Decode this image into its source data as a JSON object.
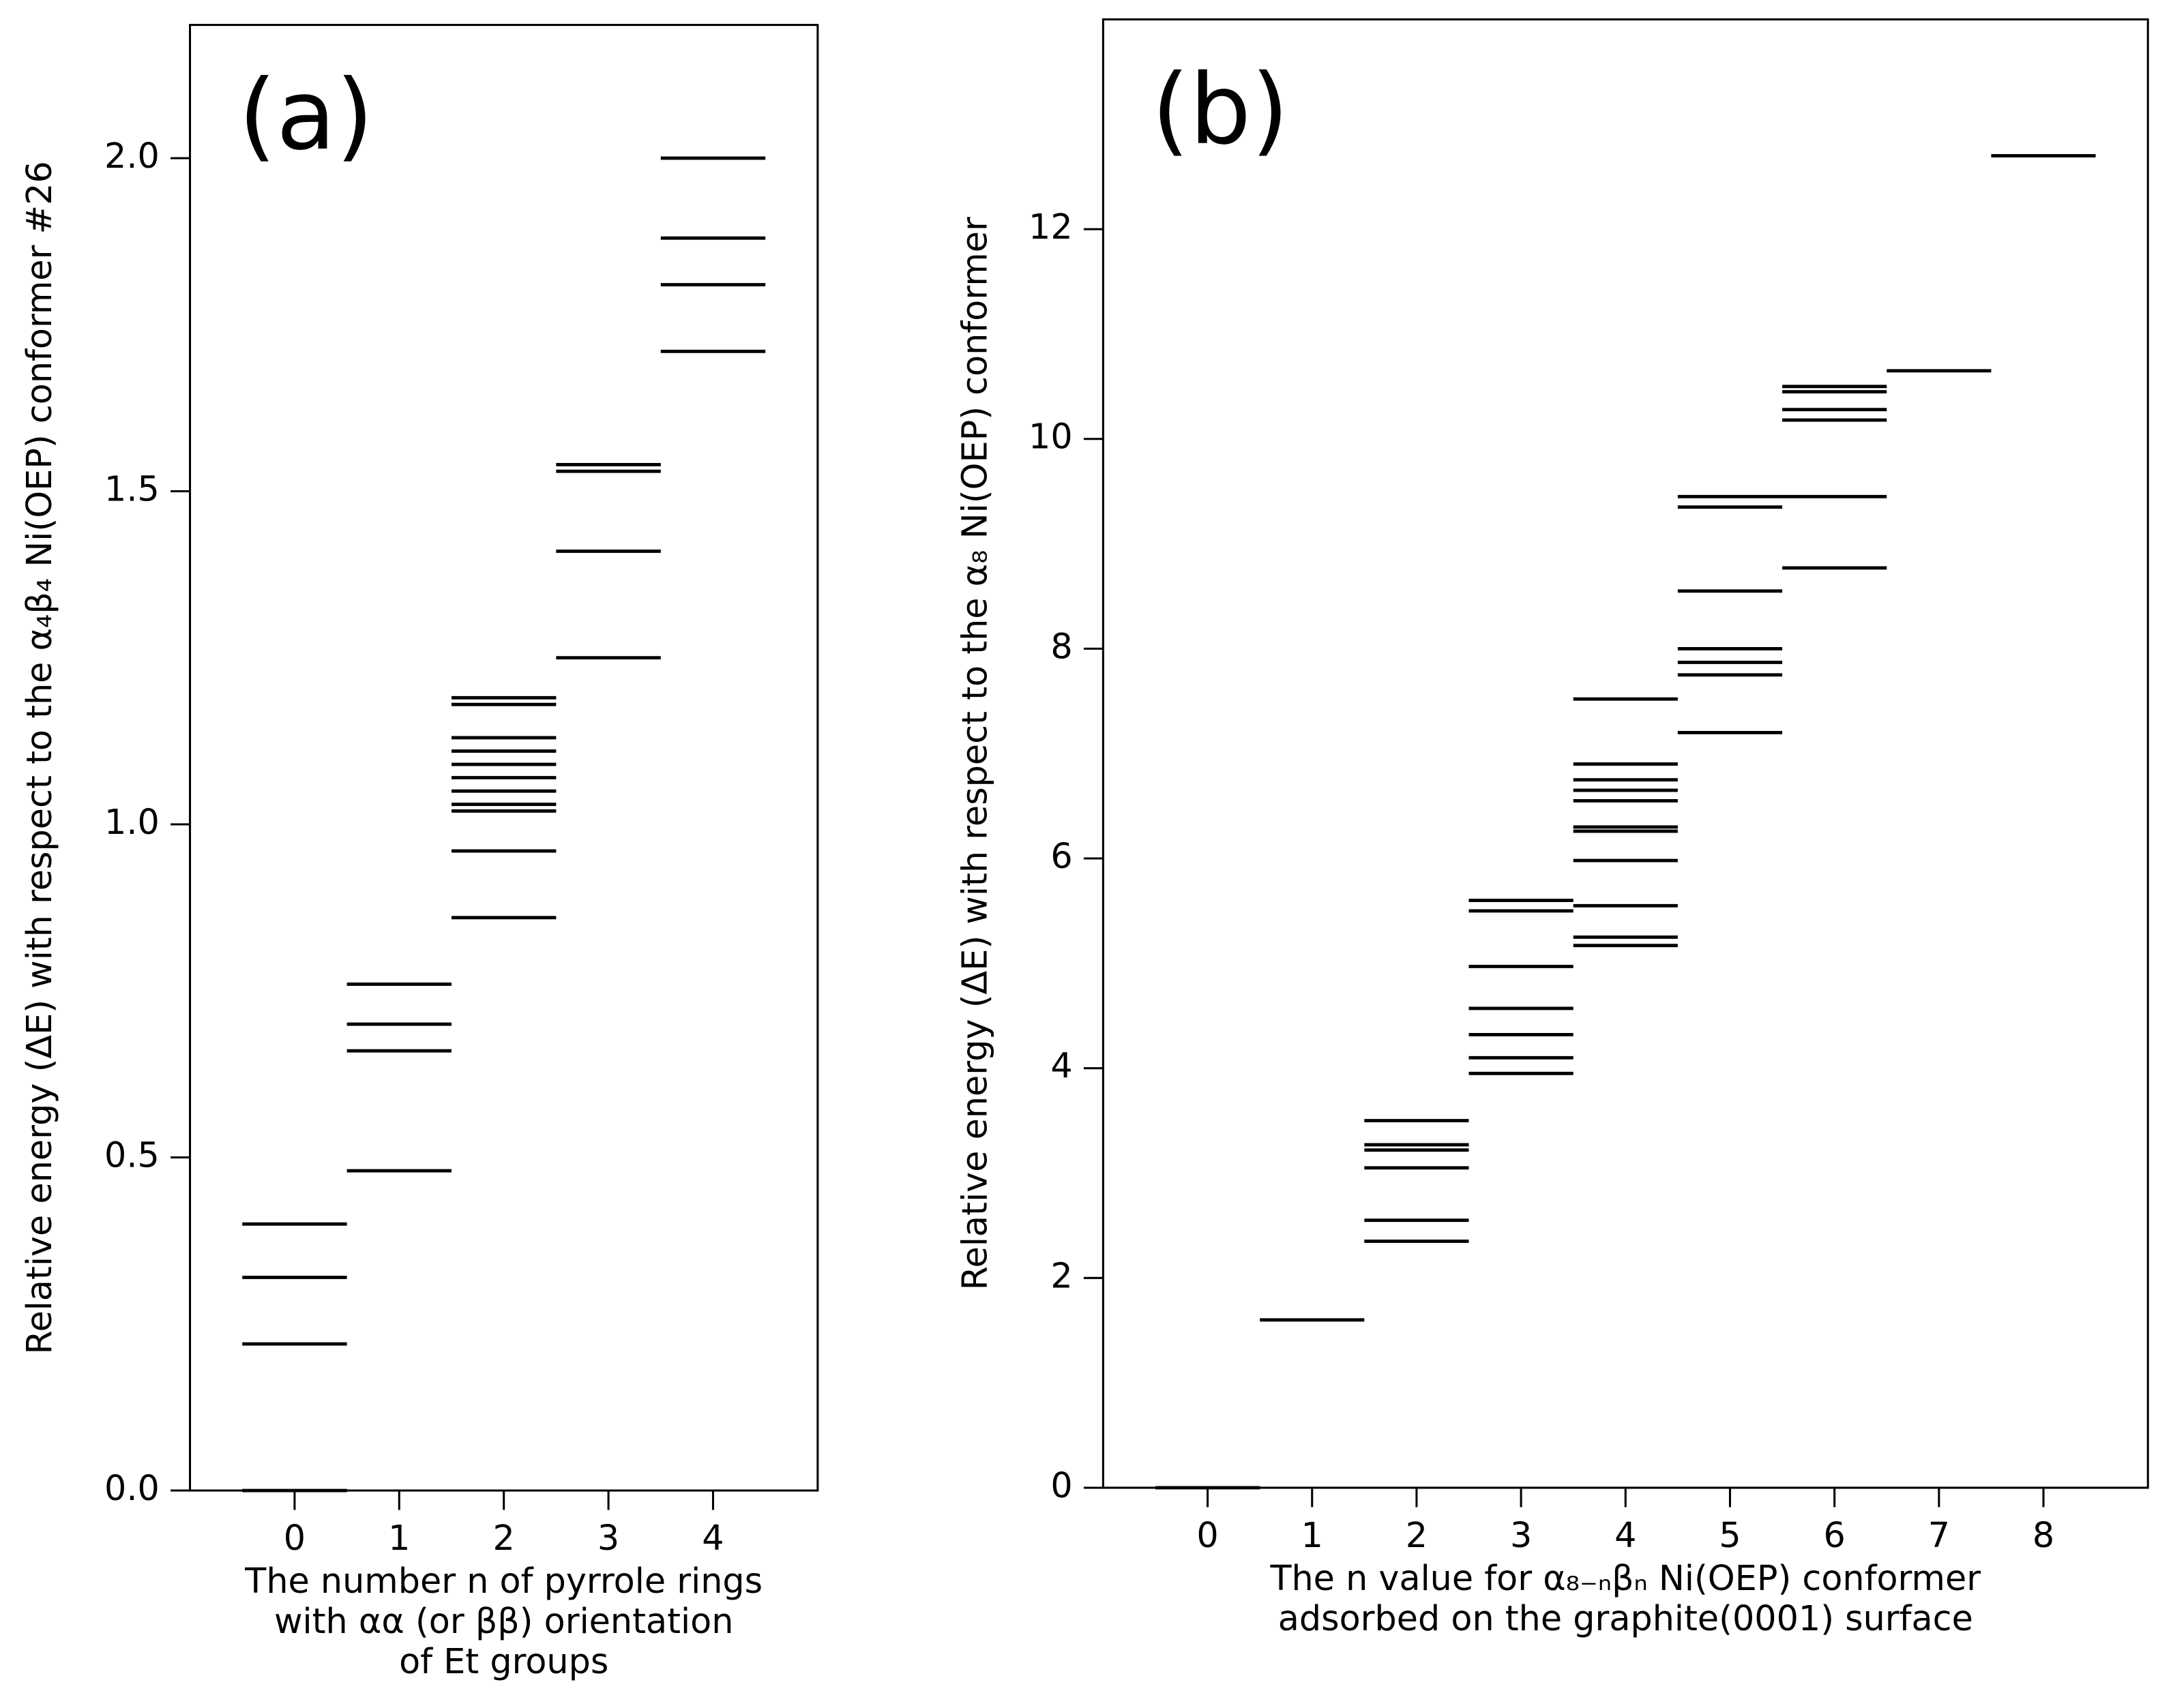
{
  "chart_data": [
    {
      "type": "levels",
      "panel_label": "(a)",
      "ylabel": "Relative energy (ΔE) with respect to the α₄β₄ Ni(OEP) conformer #26",
      "xlabel": [
        "The number n of pyrrole rings",
        "with αα (or ββ) orientation",
        "of Et groups"
      ],
      "x": [
        0,
        1,
        2,
        3,
        4
      ],
      "xlim": [
        -1,
        5
      ],
      "xticks": [
        0,
        1,
        2,
        3,
        4
      ],
      "ylim": [
        0,
        2.2
      ],
      "yticks": [
        {
          "value": 0,
          "label": "0.0"
        },
        0.5,
        {
          "value": 1,
          "label": "1.0"
        },
        1.5,
        {
          "value": 2,
          "label": "2.0"
        }
      ],
      "levels": [
        [
          0.0,
          0.22,
          0.32,
          0.4
        ],
        [
          0.48,
          0.66,
          0.7,
          0.76
        ],
        [
          0.86,
          0.96,
          1.02,
          1.03,
          1.05,
          1.07,
          1.09,
          1.11,
          1.13,
          1.18,
          1.19
        ],
        [
          1.25,
          1.41,
          1.53,
          1.54
        ],
        [
          1.71,
          1.81,
          1.88,
          2.0
        ]
      ],
      "color": "#000000"
    },
    {
      "type": "levels",
      "panel_label": "(b)",
      "ylabel": "Relative energy (ΔE) with respect to the α₈ Ni(OEP) conformer",
      "xlabel": [
        "The n value for α₈₋ₙβₙ Ni(OEP) conformer",
        "adsorbed on the graphite(0001) surface"
      ],
      "x": [
        0,
        1,
        2,
        3,
        4,
        5,
        6,
        7,
        8
      ],
      "xlim": [
        -1,
        9
      ],
      "xticks": [
        0,
        1,
        2,
        3,
        4,
        5,
        6,
        7,
        8
      ],
      "ylim": [
        0,
        14
      ],
      "yticks": [
        0,
        2,
        4,
        6,
        8,
        10,
        12
      ],
      "levels": [
        [
          0.0
        ],
        [
          1.6
        ],
        [
          2.35,
          2.55,
          3.05,
          3.22,
          3.27,
          3.5
        ],
        [
          3.95,
          4.1,
          4.32,
          4.57,
          4.97,
          5.5,
          5.6
        ],
        [
          5.17,
          5.25,
          5.55,
          5.98,
          6.26,
          6.3,
          6.55,
          6.65,
          6.75,
          6.9,
          7.52
        ],
        [
          7.2,
          7.75,
          7.87,
          8.0,
          8.55,
          9.35,
          9.45
        ],
        [
          8.77,
          9.45,
          10.18,
          10.28,
          10.45,
          10.5
        ],
        [
          10.65
        ],
        [
          12.7
        ]
      ],
      "color": "#000000"
    }
  ]
}
